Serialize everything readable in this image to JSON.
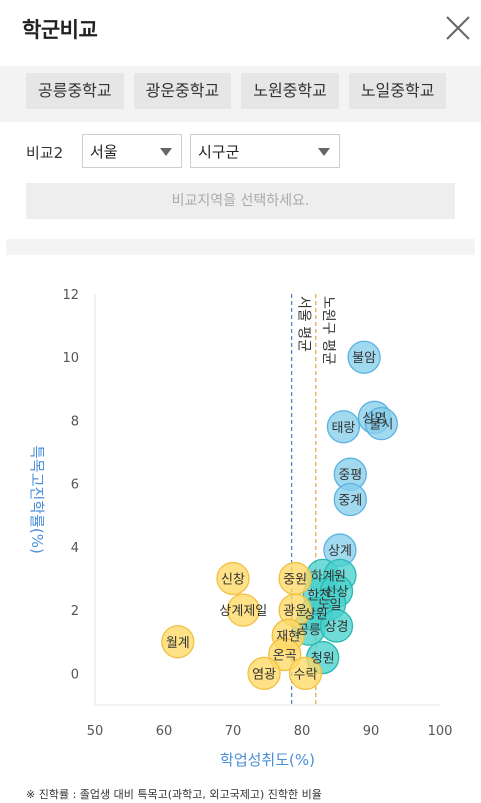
{
  "header": {
    "title": "학군비교"
  },
  "tabs": [
    {
      "label": "공릉중학교"
    },
    {
      "label": "광운중학교"
    },
    {
      "label": "노원중학교"
    },
    {
      "label": "노일중학교"
    }
  ],
  "filters": {
    "label": "비교2",
    "city": "서울",
    "district": "시구군"
  },
  "region_button": {
    "label": "비교지역을 선택하세요."
  },
  "footnote": "※ 진학률 : 졸업생 대비 특목고(과학고, 외고국제고) 진학한 비율",
  "colors": {
    "blue": "#87ceeb",
    "teal": "#48d1cc",
    "yellow": "#ffd966",
    "axis_title": "#4a90d9"
  },
  "chart_data": {
    "type": "scatter",
    "xlabel": "학업성취도(%)",
    "ylabel": "특목고진학률(%)",
    "xlim": [
      50,
      100
    ],
    "ylim": [
      -1,
      12
    ],
    "xticks": [
      50,
      60,
      70,
      80,
      90,
      100
    ],
    "yticks": [
      0,
      2,
      4,
      6,
      8,
      10,
      12
    ],
    "grid": false,
    "reference_lines": [
      {
        "label": "서울 평균",
        "x": 78.5,
        "color": "#4a7fc1"
      },
      {
        "label": "노원구 평균",
        "x": 82.0,
        "color": "#e8a040"
      }
    ],
    "points": [
      {
        "label": "불암",
        "x": 89,
        "y": 10.0,
        "group": "blue"
      },
      {
        "label": "상명",
        "x": 90.5,
        "y": 8.1,
        "group": "blue"
      },
      {
        "label": "불시",
        "x": 91.5,
        "y": 7.9,
        "group": "blue"
      },
      {
        "label": "태랑",
        "x": 86,
        "y": 7.8,
        "group": "blue"
      },
      {
        "label": "중평",
        "x": 87,
        "y": 6.3,
        "group": "blue"
      },
      {
        "label": "중계",
        "x": 87,
        "y": 5.5,
        "group": "blue"
      },
      {
        "label": "상계",
        "x": 85.5,
        "y": 3.9,
        "group": "blue"
      },
      {
        "label": "하계",
        "x": 83,
        "y": 3.1,
        "group": "teal"
      },
      {
        "label": "원",
        "x": 85.5,
        "y": 3.1,
        "group": "teal"
      },
      {
        "label": "한천",
        "x": 82.5,
        "y": 2.5,
        "group": "teal"
      },
      {
        "label": "신상",
        "x": 85,
        "y": 2.6,
        "group": "teal"
      },
      {
        "label": "노일",
        "x": 84,
        "y": 2.2,
        "group": "teal"
      },
      {
        "label": "상원",
        "x": 82,
        "y": 1.9,
        "group": "teal"
      },
      {
        "label": "공릉",
        "x": 81,
        "y": 1.4,
        "group": "teal"
      },
      {
        "label": "상경",
        "x": 85,
        "y": 1.5,
        "group": "teal"
      },
      {
        "label": "청원",
        "x": 83,
        "y": 0.5,
        "group": "teal"
      },
      {
        "label": "신창",
        "x": 70,
        "y": 3.0,
        "group": "yellow"
      },
      {
        "label": "중원",
        "x": 79,
        "y": 3.0,
        "group": "yellow"
      },
      {
        "label": "상계제일",
        "x": 71.5,
        "y": 2.0,
        "group": "yellow"
      },
      {
        "label": "광운",
        "x": 79,
        "y": 2.0,
        "group": "yellow"
      },
      {
        "label": "재현",
        "x": 78,
        "y": 1.2,
        "group": "yellow"
      },
      {
        "label": "온곡",
        "x": 77.5,
        "y": 0.6,
        "group": "yellow"
      },
      {
        "label": "월계",
        "x": 62,
        "y": 1.0,
        "group": "yellow"
      },
      {
        "label": "염광",
        "x": 74.5,
        "y": 0.0,
        "group": "yellow"
      },
      {
        "label": "수락",
        "x": 80.5,
        "y": 0.0,
        "group": "yellow"
      }
    ]
  }
}
